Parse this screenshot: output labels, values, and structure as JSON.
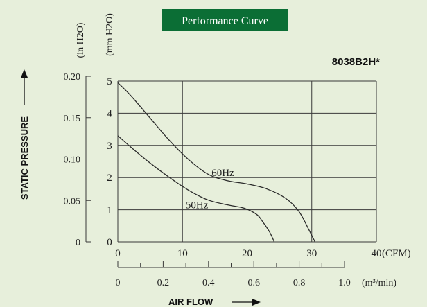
{
  "chart_data": {
    "type": "line",
    "title": "Performance Curve",
    "model": "8038B2H*",
    "ylabel": "STATIC PRESSURE",
    "xlabel": "AIR FLOW",
    "units": {
      "y_primary": "(mm H2O)",
      "y_secondary": "(in H2O)",
      "x_primary": "(CFM)",
      "x_secondary": "(m³/min)"
    },
    "xlim": [
      0,
      40
    ],
    "ylim": [
      0,
      5
    ],
    "x_ticks": [
      "0",
      "10",
      "20",
      "30",
      "40"
    ],
    "y_ticks": [
      "0",
      "1",
      "2",
      "3",
      "4",
      "5"
    ],
    "y2_ticks": [
      "0",
      "0.05",
      "0.10",
      "0.15",
      "0.20"
    ],
    "x2_ticks": [
      "0",
      "0.2",
      "0.4",
      "0.6",
      "0.8",
      "1.0"
    ],
    "grid": true,
    "series": [
      {
        "name": "60Hz",
        "x": [
          0,
          2,
          5,
          8,
          11,
          14,
          17,
          20,
          23,
          26,
          28,
          29.5,
          30.5
        ],
        "y": [
          4.95,
          4.55,
          3.85,
          3.15,
          2.55,
          2.1,
          1.9,
          1.8,
          1.65,
          1.35,
          0.95,
          0.4,
          0.0
        ]
      },
      {
        "name": "50Hz",
        "x": [
          0,
          2,
          5,
          8,
          11,
          14,
          17,
          19.5,
          21.5,
          22.5,
          23.5,
          24.2
        ],
        "y": [
          3.3,
          2.95,
          2.45,
          2.0,
          1.6,
          1.3,
          1.15,
          1.05,
          0.85,
          0.6,
          0.3,
          0.0
        ]
      }
    ]
  }
}
